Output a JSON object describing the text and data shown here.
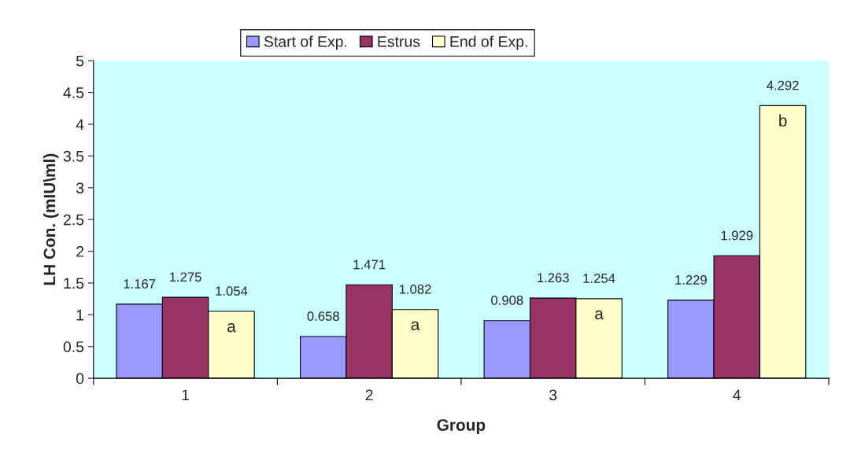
{
  "chart_data": {
    "type": "bar",
    "xlabel": "Group",
    "ylabel": "LH Con. (mIU\\ml)",
    "categories": [
      "1",
      "2",
      "3",
      "4"
    ],
    "series": [
      {
        "name": "Start of Exp.",
        "color": "#9999ff",
        "values": [
          1.167,
          0.658,
          0.908,
          1.229
        ]
      },
      {
        "name": "Estrus",
        "color": "#993366",
        "values": [
          1.275,
          1.471,
          1.263,
          1.929
        ]
      },
      {
        "name": "End of Exp.",
        "color": "#ffffcc",
        "values": [
          1.054,
          1.082,
          1.254,
          4.292
        ]
      }
    ],
    "ylim": [
      0,
      5
    ],
    "yticks": [
      0,
      0.5,
      1,
      1.5,
      2,
      2.5,
      3,
      3.5,
      4,
      4.5,
      5
    ],
    "data_labels": true,
    "grid": false,
    "legend": "top",
    "annotations": [
      "a",
      "a",
      "a",
      "b"
    ]
  }
}
